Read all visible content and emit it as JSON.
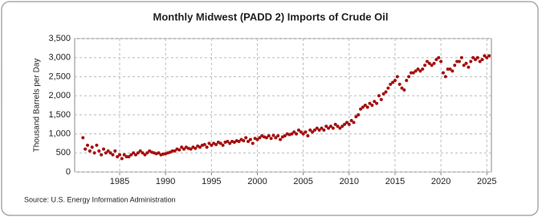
{
  "chart_data": {
    "type": "scatter",
    "title": "Monthly Midwest (PADD 2) Imports of Crude Oil",
    "y_label": "Thousand Barrels per Day",
    "source": "Source: U.S. Energy Information Administration",
    "color": "#a50f0f",
    "grid": true,
    "xlim": [
      1980.1,
      2025.5
    ],
    "xticks": [
      1985,
      1990,
      1995,
      2000,
      2005,
      2010,
      2015,
      2020,
      2025
    ],
    "ylim": [
      0,
      3500
    ],
    "yticks": [
      0,
      500,
      {
        "value": 1000,
        "label": "1,000"
      },
      {
        "value": 1500,
        "label": "1,500"
      },
      {
        "value": 2000,
        "label": "2,000"
      },
      {
        "value": 2500,
        "label": "2,500"
      },
      {
        "value": 3000,
        "label": "3,000"
      },
      {
        "value": 3500,
        "label": "3,500"
      }
    ],
    "x": [
      1981,
      1981.25,
      1981.5,
      1981.75,
      1982,
      1982.25,
      1982.5,
      1982.75,
      1983,
      1983.25,
      1983.5,
      1983.75,
      1984,
      1984.25,
      1984.5,
      1984.75,
      1985,
      1985.25,
      1985.5,
      1985.75,
      1986,
      1986.25,
      1986.5,
      1986.75,
      1987,
      1987.25,
      1987.5,
      1987.75,
      1988,
      1988.25,
      1988.5,
      1988.75,
      1989,
      1989.25,
      1989.5,
      1989.75,
      1990,
      1990.25,
      1990.5,
      1990.75,
      1991,
      1991.25,
      1991.5,
      1991.75,
      1992,
      1992.25,
      1992.5,
      1992.75,
      1993,
      1993.25,
      1993.5,
      1993.75,
      1994,
      1994.25,
      1994.5,
      1994.75,
      1995,
      1995.25,
      1995.5,
      1995.75,
      1996,
      1996.25,
      1996.5,
      1996.75,
      1997,
      1997.25,
      1997.5,
      1997.75,
      1998,
      1998.25,
      1998.5,
      1998.75,
      1999,
      1999.25,
      1999.5,
      1999.75,
      2000,
      2000.25,
      2000.5,
      2000.75,
      2001,
      2001.25,
      2001.5,
      2001.75,
      2002,
      2002.25,
      2002.5,
      2002.75,
      2003,
      2003.25,
      2003.5,
      2003.75,
      2004,
      2004.25,
      2004.5,
      2004.75,
      2005,
      2005.25,
      2005.5,
      2005.75,
      2006,
      2006.25,
      2006.5,
      2006.75,
      2007,
      2007.25,
      2007.5,
      2007.75,
      2008,
      2008.25,
      2008.5,
      2008.75,
      2009,
      2009.25,
      2009.5,
      2009.75,
      2010,
      2010.25,
      2010.5,
      2010.75,
      2011,
      2011.25,
      2011.5,
      2011.75,
      2012,
      2012.25,
      2012.5,
      2012.75,
      2013,
      2013.25,
      2013.5,
      2013.75,
      2014,
      2014.25,
      2014.5,
      2014.75,
      2015,
      2015.25,
      2015.5,
      2015.75,
      2016,
      2016.25,
      2016.5,
      2016.75,
      2017,
      2017.25,
      2017.5,
      2017.75,
      2018,
      2018.25,
      2018.5,
      2018.75,
      2019,
      2019.25,
      2019.5,
      2019.75,
      2020,
      2020.25,
      2020.5,
      2020.75,
      2021,
      2021.25,
      2021.5,
      2021.75,
      2022,
      2022.25,
      2022.5,
      2022.75,
      2023,
      2023.25,
      2023.5,
      2023.75,
      2024,
      2024.25,
      2024.5,
      2024.75,
      2025,
      2025.25
    ],
    "values": [
      900,
      600,
      700,
      550,
      650,
      500,
      700,
      550,
      450,
      600,
      500,
      550,
      500,
      450,
      550,
      400,
      450,
      350,
      450,
      400,
      400,
      450,
      500,
      450,
      500,
      550,
      500,
      450,
      500,
      550,
      520,
      500,
      480,
      500,
      450,
      470,
      480,
      500,
      520,
      550,
      550,
      600,
      580,
      650,
      600,
      650,
      620,
      600,
      650,
      620,
      680,
      650,
      700,
      720,
      650,
      750,
      700,
      750,
      720,
      780,
      750,
      700,
      780,
      800,
      750,
      800,
      780,
      820,
      800,
      850,
      820,
      900,
      800,
      850,
      750,
      880,
      850,
      900,
      950,
      920,
      900,
      950,
      880,
      960,
      900,
      950,
      850,
      920,
      950,
      1000,
      980,
      1000,
      1050,
      1000,
      1100,
      1050,
      1000,
      1050,
      950,
      1100,
      1050,
      1100,
      1150,
      1100,
      1150,
      1100,
      1200,
      1150,
      1200,
      1150,
      1250,
      1200,
      1150,
      1200,
      1250,
      1300,
      1250,
      1350,
      1300,
      1450,
      1500,
      1650,
      1700,
      1750,
      1700,
      1800,
      1750,
      1850,
      1800,
      2000,
      1900,
      2050,
      2100,
      2200,
      2300,
      2350,
      2400,
      2500,
      2300,
      2200,
      2150,
      2400,
      2500,
      2600,
      2600,
      2650,
      2700,
      2650,
      2700,
      2800,
      2900,
      2850,
      2800,
      2850,
      2950,
      3000,
      2900,
      2600,
      2500,
      2700,
      2700,
      2650,
      2800,
      2900,
      2900,
      3000,
      2800,
      2850,
      2750,
      2900,
      3000,
      2950,
      3000,
      2900,
      2950,
      3050,
      3000,
      3050
    ]
  }
}
